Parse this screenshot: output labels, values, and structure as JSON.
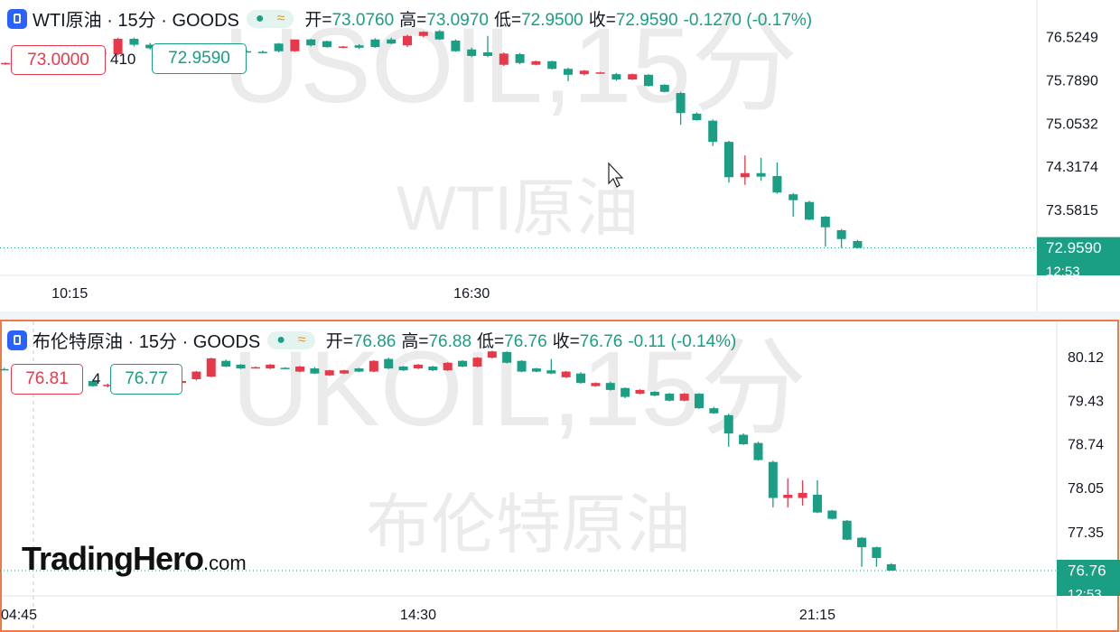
{
  "chart_data": [
    {
      "type": "candlestick",
      "title": "WTI原油 · 15分 · GOODS",
      "ohlc": [
        {
          "label": "开=",
          "value": "73.0760"
        },
        {
          "label": "高=",
          "value": "73.0970"
        },
        {
          "label": "低=",
          "value": "72.9500"
        },
        {
          "label": "收=",
          "value": "72.9590"
        }
      ],
      "change": "-0.1270 (-0.17%)",
      "watermark": [
        "USOIL,15分",
        "WTI原油"
      ],
      "trade_panel": {
        "sell": "73.0000",
        "volume": "410",
        "buy": "72.9590"
      },
      "up_color": "#e8394a",
      "down_color": "#1a9e84",
      "grid": false,
      "categories": [
        null,
        null,
        null,
        null,
        "10:15",
        null,
        null,
        null,
        null,
        null,
        null,
        null,
        null,
        null,
        null,
        null,
        null,
        null,
        null,
        null,
        null,
        null,
        null,
        null,
        null,
        null,
        null,
        null,
        null,
        "16:30",
        null,
        null,
        null,
        null,
        null,
        null,
        null,
        null,
        null,
        null,
        null,
        null,
        null,
        null,
        null,
        null,
        null,
        null,
        null,
        null,
        null,
        null,
        null,
        null
      ],
      "open": [
        76.08,
        76.1,
        76.15,
        76.2,
        76.18,
        76.24,
        76.28,
        76.25,
        76.51,
        76.41,
        76.35,
        76.31,
        76.33,
        76.3,
        76.29,
        76.3,
        76.29,
        76.43,
        76.3,
        76.5,
        76.47,
        76.36,
        76.4,
        76.5,
        76.5,
        76.4,
        76.56,
        76.64,
        76.48,
        76.33,
        76.28,
        76.07,
        76.25,
        76.07,
        76.13,
        76.0,
        75.91,
        75.93,
        75.91,
        75.82,
        75.9,
        75.73,
        75.59,
        75.24,
        75.12,
        74.76,
        74.16,
        74.23,
        74.18,
        73.87,
        73.74,
        73.49,
        73.26,
        73.076
      ],
      "high": [
        76.11,
        76.16,
        76.22,
        76.25,
        76.26,
        76.3,
        76.33,
        76.53,
        76.53,
        76.44,
        76.37,
        76.34,
        76.35,
        76.33,
        76.32,
        76.32,
        76.31,
        76.44,
        76.5,
        76.51,
        76.48,
        76.39,
        76.42,
        76.52,
        76.53,
        76.58,
        76.64,
        76.66,
        76.5,
        76.36,
        76.56,
        76.28,
        76.27,
        76.14,
        76.14,
        76.02,
        75.98,
        75.95,
        75.93,
        75.92,
        75.91,
        75.74,
        75.61,
        75.26,
        75.14,
        74.78,
        74.53,
        74.49,
        74.41,
        73.89,
        73.76,
        73.5,
        73.28,
        73.097
      ],
      "low": [
        76.07,
        76.08,
        76.13,
        76.17,
        76.16,
        76.21,
        76.24,
        76.23,
        76.38,
        76.33,
        76.3,
        76.28,
        76.29,
        76.27,
        76.26,
        76.28,
        76.27,
        76.28,
        76.29,
        76.38,
        76.36,
        76.35,
        76.34,
        76.36,
        76.42,
        76.37,
        76.54,
        76.49,
        76.29,
        76.2,
        76.2,
        76.05,
        76.08,
        76.06,
        75.99,
        75.79,
        75.89,
        75.92,
        75.8,
        75.81,
        75.7,
        75.6,
        75.05,
        75.12,
        74.69,
        74.07,
        74.03,
        74.1,
        73.88,
        73.49,
        73.43,
        72.98,
        72.96,
        72.95
      ],
      "close": [
        76.1,
        76.15,
        76.2,
        76.18,
        76.24,
        76.28,
        76.26,
        76.51,
        76.41,
        76.35,
        76.31,
        76.33,
        76.3,
        76.29,
        76.3,
        76.29,
        76.28,
        76.3,
        76.5,
        76.4,
        76.37,
        76.38,
        76.36,
        76.37,
        76.43,
        76.56,
        76.63,
        76.5,
        76.3,
        76.22,
        76.22,
        76.26,
        76.1,
        76.13,
        76.0,
        75.9,
        75.97,
        75.94,
        75.82,
        75.91,
        75.71,
        75.61,
        75.25,
        75.13,
        74.76,
        74.16,
        74.23,
        74.17,
        73.9,
        73.77,
        73.44,
        73.31,
        73.11,
        72.959
      ],
      "ylim": [
        72.493,
        77.17
      ],
      "yticks": [
        73.5815,
        74.3174,
        75.0532,
        {
          "value": 75.789,
          "label": "75.7890"
        },
        76.5249
      ],
      "last_price": {
        "value": 72.959,
        "label": "72.9590"
      },
      "countdown": "12:53"
    },
    {
      "type": "candlestick",
      "title": "布伦特原油 · 15分 · GOODS",
      "ohlc": [
        {
          "label": "开=",
          "value": "76.86"
        },
        {
          "label": "高=",
          "value": "76.88"
        },
        {
          "label": "低=",
          "value": "76.76"
        },
        {
          "label": "收=",
          "value": "76.76"
        }
      ],
      "change": "-0.11 (-0.14%)",
      "watermark": [
        "UKOIL,15分",
        "布伦特原油"
      ],
      "trade_panel": {
        "sell": "76.81",
        "volume": "4",
        "buy": "76.77"
      },
      "brand": {
        "name": "TradingHero",
        "suffix": ".com"
      },
      "up_color": "#e8394a",
      "down_color": "#1a9e84",
      "grid": false,
      "categories": [
        null,
        "04:45",
        null,
        null,
        null,
        null,
        null,
        null,
        null,
        null,
        null,
        null,
        null,
        null,
        null,
        null,
        null,
        null,
        null,
        null,
        null,
        null,
        null,
        null,
        null,
        null,
        null,
        null,
        "14:30",
        null,
        null,
        null,
        null,
        null,
        null,
        null,
        null,
        null,
        null,
        null,
        null,
        null,
        null,
        null,
        null,
        null,
        null,
        null,
        null,
        null,
        null,
        null,
        null,
        null,
        null,
        "21:15",
        null,
        null,
        null,
        null,
        null
      ],
      "open": [
        79.95,
        79.94,
        79.86,
        79.88,
        79.82,
        79.84,
        79.76,
        79.68,
        79.7,
        79.72,
        79.74,
        79.71,
        79.73,
        79.79,
        79.83,
        80.08,
        80.02,
        79.97,
        79.96,
        79.97,
        79.91,
        79.96,
        79.85,
        79.88,
        79.96,
        79.91,
        80.11,
        79.99,
        79.96,
        79.99,
        79.93,
        80.08,
        79.99,
        80.13,
        80.22,
        80.08,
        79.96,
        79.93,
        79.82,
        79.88,
        79.68,
        79.73,
        79.65,
        79.56,
        79.59,
        79.56,
        79.45,
        79.56,
        79.33,
        79.22,
        78.91,
        78.78,
        78.48,
        77.91,
        77.91,
        77.96,
        77.71,
        77.55,
        77.28,
        77.13,
        76.86
      ],
      "high": [
        79.97,
        79.96,
        79.9,
        79.9,
        79.86,
        79.85,
        79.78,
        79.72,
        79.74,
        79.76,
        79.77,
        79.75,
        79.78,
        79.92,
        80.13,
        80.1,
        80.03,
        79.99,
        80.03,
        79.98,
        80.0,
        79.98,
        79.94,
        79.94,
        79.97,
        80.09,
        80.13,
        80.0,
        80.03,
        80.0,
        80.06,
        80.09,
        80.14,
        80.24,
        80.23,
        80.09,
        79.97,
        80.11,
        79.92,
        79.9,
        79.74,
        79.75,
        79.66,
        79.63,
        79.6,
        79.57,
        79.57,
        79.57,
        79.35,
        79.24,
        78.93,
        78.8,
        78.5,
        78.22,
        78.19,
        78.19,
        77.72,
        77.56,
        77.29,
        77.14,
        76.88
      ],
      "low": [
        79.93,
        79.85,
        79.82,
        79.8,
        79.78,
        79.74,
        79.67,
        79.66,
        79.66,
        79.69,
        79.7,
        79.68,
        79.71,
        79.77,
        79.82,
        79.98,
        79.95,
        79.96,
        79.95,
        79.95,
        79.9,
        79.87,
        79.84,
        79.87,
        79.9,
        79.9,
        79.95,
        79.92,
        79.95,
        79.92,
        79.92,
        79.98,
        79.98,
        80.12,
        80.04,
        79.9,
        79.9,
        79.87,
        79.81,
        79.72,
        79.67,
        79.61,
        79.49,
        79.55,
        79.52,
        79.44,
        79.44,
        79.32,
        79.24,
        78.72,
        78.75,
        78.5,
        77.76,
        77.76,
        77.79,
        77.67,
        77.57,
        77.24,
        76.82,
        76.82,
        76.76
      ],
      "close": [
        79.94,
        79.86,
        79.88,
        79.82,
        79.84,
        79.76,
        79.68,
        79.7,
        79.72,
        79.74,
        79.71,
        79.73,
        79.76,
        79.91,
        80.12,
        79.99,
        79.96,
        79.98,
        80.02,
        79.96,
        79.99,
        79.88,
        79.93,
        79.93,
        79.91,
        80.08,
        79.96,
        79.93,
        80.02,
        79.93,
        80.05,
        79.99,
        80.13,
        80.23,
        80.05,
        79.91,
        79.91,
        79.88,
        79.91,
        79.73,
        79.73,
        79.62,
        79.51,
        79.62,
        79.53,
        79.45,
        79.56,
        79.33,
        79.25,
        78.93,
        78.76,
        78.51,
        77.91,
        77.96,
        77.99,
        77.68,
        77.58,
        77.25,
        77.13,
        76.96,
        76.76
      ],
      "ylim": [
        76.36,
        80.69
      ],
      "yticks": [
        77.35,
        78.05,
        78.74,
        79.43,
        80.12
      ],
      "last_price": {
        "value": 76.76,
        "label": "76.76"
      },
      "countdown": "12:53"
    }
  ]
}
